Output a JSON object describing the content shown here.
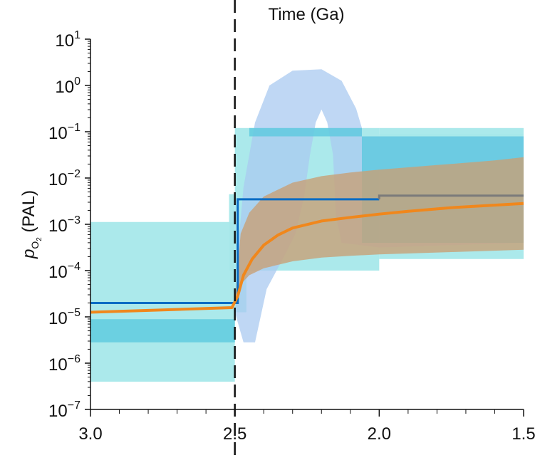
{
  "chart_data": {
    "type": "area",
    "xlabel": "Time (Ga)",
    "ylabel": {
      "p": "p",
      "sub": "O",
      "subsub": "2",
      "rest": " (PAL)"
    },
    "x_direction": "reversed",
    "xlim": [
      3.0,
      1.5
    ],
    "ylim_log10": [
      -7,
      1
    ],
    "y_scale": "log",
    "grid": false,
    "x_ticks": [
      {
        "value": 3.0,
        "label": "3.0"
      },
      {
        "value": 2.5,
        "label": "2.5"
      },
      {
        "value": 2.0,
        "label": "2.0"
      },
      {
        "value": 1.5,
        "label": "1.5"
      }
    ],
    "y_ticks": [
      {
        "exp": 1,
        "base": "10",
        "sup": "1"
      },
      {
        "exp": 0,
        "base": "10",
        "sup": "0"
      },
      {
        "exp": -1,
        "base": "10",
        "sup": "−1"
      },
      {
        "exp": -2,
        "base": "10",
        "sup": "−2"
      },
      {
        "exp": -3,
        "base": "10",
        "sup": "−3"
      },
      {
        "exp": -4,
        "base": "10",
        "sup": "−4"
      },
      {
        "exp": -5,
        "base": "10",
        "sup": "−5"
      },
      {
        "exp": -6,
        "base": "10",
        "sup": "−6"
      },
      {
        "exp": -7,
        "base": "10",
        "sup": "−7"
      }
    ],
    "reference_line": {
      "x": 2.5,
      "style": "dashed"
    },
    "cyan_boxes": [
      {
        "x0": 3.0,
        "x1": 2.5,
        "log_y0": -6.4,
        "log_y1": -2.95
      },
      {
        "x0": 3.0,
        "x1": 2.5,
        "log_y0": -5.55,
        "log_y1": -5.05
      },
      {
        "x0": 2.52,
        "x1": 2.5,
        "log_y0": -4.0,
        "log_y1": -2.35
      },
      {
        "x0": 2.5,
        "x1": 2.0,
        "log_y0": -4.0,
        "log_y1": -0.92
      },
      {
        "x0": 2.5,
        "x1": 2.46,
        "log_y0": -4.9,
        "log_y1": -4.0
      },
      {
        "x0": 2.0,
        "x1": 1.5,
        "log_y0": -3.75,
        "log_y1": -0.92
      },
      {
        "x0": 2.0,
        "x1": 1.5,
        "log_y0": -3.55,
        "log_y1": -1.05
      }
    ],
    "blue_envelope": {
      "left": [
        [
          2.49,
          -4.45
        ],
        [
          2.49,
          -3.6
        ],
        [
          2.47,
          -2.2
        ],
        [
          2.43,
          -0.8
        ],
        [
          2.38,
          0.0
        ],
        [
          2.3,
          0.32
        ],
        [
          2.2,
          0.35
        ],
        [
          2.13,
          0.1
        ],
        [
          2.08,
          -0.5
        ],
        [
          2.06,
          -0.92
        ]
      ],
      "right": [
        [
          2.06,
          -0.92
        ],
        [
          2.06,
          -1.1
        ],
        [
          1.5,
          -1.1
        ],
        [
          1.5,
          -3.4
        ],
        [
          2.0,
          -3.5
        ],
        [
          2.13,
          -3.4
        ],
        [
          2.15,
          -2.8
        ],
        [
          2.16,
          -1.5
        ],
        [
          2.18,
          -0.8
        ],
        [
          2.2,
          -0.52
        ],
        [
          2.22,
          -0.8
        ],
        [
          2.24,
          -1.5
        ],
        [
          2.26,
          -2.4
        ],
        [
          2.29,
          -3.2
        ],
        [
          2.33,
          -3.7
        ],
        [
          2.39,
          -4.4
        ],
        [
          2.43,
          -5.55
        ],
        [
          2.47,
          -5.55
        ],
        [
          2.5,
          -4.9
        ]
      ]
    },
    "series": [
      {
        "color": "#0a6cc4",
        "type": "step",
        "points": [
          [
            3.0,
            -4.7
          ],
          [
            2.49,
            -4.7
          ],
          [
            2.49,
            -2.46
          ],
          [
            2.0,
            -2.46
          ],
          [
            2.0,
            -2.38
          ],
          [
            1.5,
            -2.38
          ]
        ]
      },
      {
        "color": "#f0871c",
        "type": "curve",
        "points": [
          [
            3.0,
            -4.9
          ],
          [
            2.75,
            -4.85
          ],
          [
            2.51,
            -4.8
          ],
          [
            2.49,
            -4.55
          ],
          [
            2.47,
            -4.1
          ],
          [
            2.44,
            -3.75
          ],
          [
            2.4,
            -3.45
          ],
          [
            2.35,
            -3.23
          ],
          [
            2.3,
            -3.08
          ],
          [
            2.2,
            -2.93
          ],
          [
            2.1,
            -2.85
          ],
          [
            2.0,
            -2.78
          ],
          [
            1.9,
            -2.72
          ],
          [
            1.75,
            -2.64
          ],
          [
            1.5,
            -2.55
          ]
        ]
      }
    ],
    "orange_band": {
      "upper": [
        [
          2.5,
          -4.7
        ],
        [
          2.48,
          -3.2
        ],
        [
          2.45,
          -2.75
        ],
        [
          2.4,
          -2.4
        ],
        [
          2.3,
          -2.1
        ],
        [
          2.2,
          -1.96
        ],
        [
          2.1,
          -1.88
        ],
        [
          2.0,
          -1.82
        ],
        [
          1.8,
          -1.72
        ],
        [
          1.6,
          -1.62
        ],
        [
          1.5,
          -1.55
        ]
      ],
      "lower": [
        [
          1.5,
          -3.55
        ],
        [
          1.75,
          -3.6
        ],
        [
          2.0,
          -3.65
        ],
        [
          2.1,
          -3.68
        ],
        [
          2.2,
          -3.72
        ],
        [
          2.3,
          -3.8
        ],
        [
          2.4,
          -3.95
        ],
        [
          2.45,
          -4.1
        ],
        [
          2.48,
          -4.3
        ],
        [
          2.5,
          -4.7
        ]
      ]
    },
    "colors": {
      "cyan_light": "#a6e8ea",
      "cyan_dark": "#5cc9df",
      "blue_light": "#a9c9f0",
      "orange_band": "#c8a077",
      "orange_line": "#f0871c",
      "blue_line": "#0a6cc4",
      "grey_line": "#7a7a7a"
    }
  }
}
